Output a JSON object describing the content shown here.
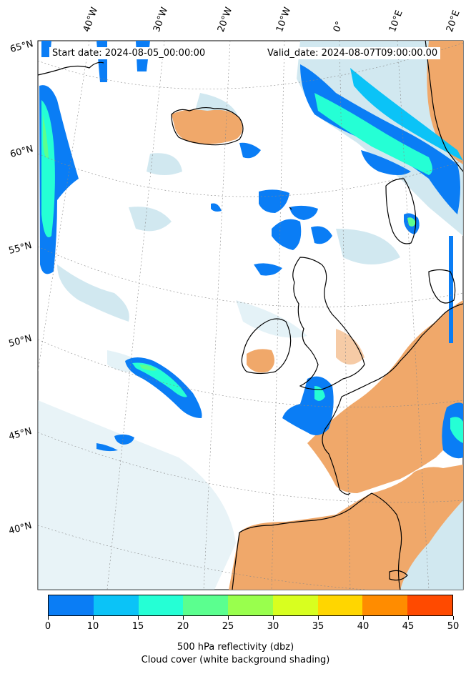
{
  "header": {
    "start_date": "Start date: 2024-08-05_00:00:00",
    "valid_date": "Valid_date: 2024-08-07T09:00:00.00"
  },
  "longitude_labels": [
    "40°W",
    "30°W",
    "20°W",
    "10°W",
    "0°",
    "10°E",
    "20°E"
  ],
  "latitude_labels": [
    "65°N",
    "60°N",
    "55°N",
    "50°N",
    "45°N",
    "40°N"
  ],
  "colorbar": {
    "ticks": [
      "0",
      "10",
      "15",
      "20",
      "25",
      "30",
      "35",
      "40",
      "45",
      "50"
    ],
    "colors": [
      "#0a7df5",
      "#0bc3f7",
      "#25ffd5",
      "#5bff8f",
      "#99ff4d",
      "#d8ff1f",
      "#ffd600",
      "#ff8c00",
      "#ff4a00"
    ],
    "label": "500 hPa reflectivity (dbz)",
    "sublabel": "Cloud cover (white background shading)"
  },
  "map": {
    "land_dry_color": "#f0a86a",
    "cloud_color": "#b9dde9",
    "ocean_color": "#ffffff",
    "coastline_color": "#000000"
  }
}
